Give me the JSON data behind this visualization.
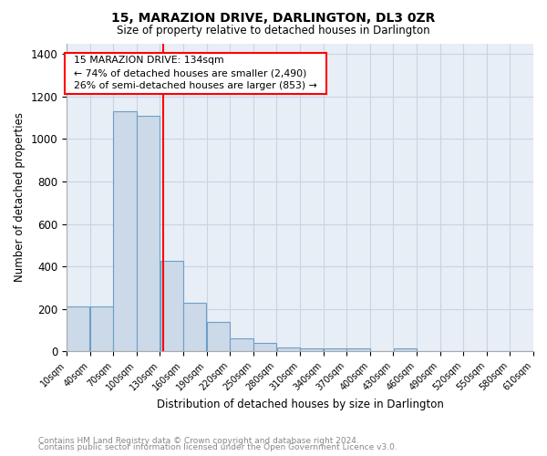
{
  "title": "15, MARAZION DRIVE, DARLINGTON, DL3 0ZR",
  "subtitle": "Size of property relative to detached houses in Darlington",
  "xlabel": "Distribution of detached houses by size in Darlington",
  "ylabel": "Number of detached properties",
  "footer_line1": "Contains HM Land Registry data © Crown copyright and database right 2024.",
  "footer_line2": "Contains public sector information licensed under the Open Government Licence v3.0.",
  "annotation_line1": "15 MARAZION DRIVE: 134sqm",
  "annotation_line2": "← 74% of detached houses are smaller (2,490)",
  "annotation_line3": "26% of semi-detached houses are larger (853) →",
  "bar_color": "#ccd9e8",
  "bar_edge_color": "#6b9fc8",
  "red_line_x": 134,
  "bins": [
    10,
    40,
    70,
    100,
    130,
    160,
    190,
    220,
    250,
    280,
    310,
    340,
    370,
    400,
    430,
    460,
    490,
    520,
    550,
    580,
    610
  ],
  "counts": [
    210,
    210,
    1130,
    1110,
    425,
    230,
    140,
    60,
    40,
    20,
    15,
    15,
    15,
    0,
    15,
    0,
    0,
    0,
    0,
    0
  ],
  "ylim": [
    0,
    1450
  ],
  "background_color": "#ffffff",
  "ax_facecolor": "#e8eef6",
  "grid_color": "#c8d4e4"
}
